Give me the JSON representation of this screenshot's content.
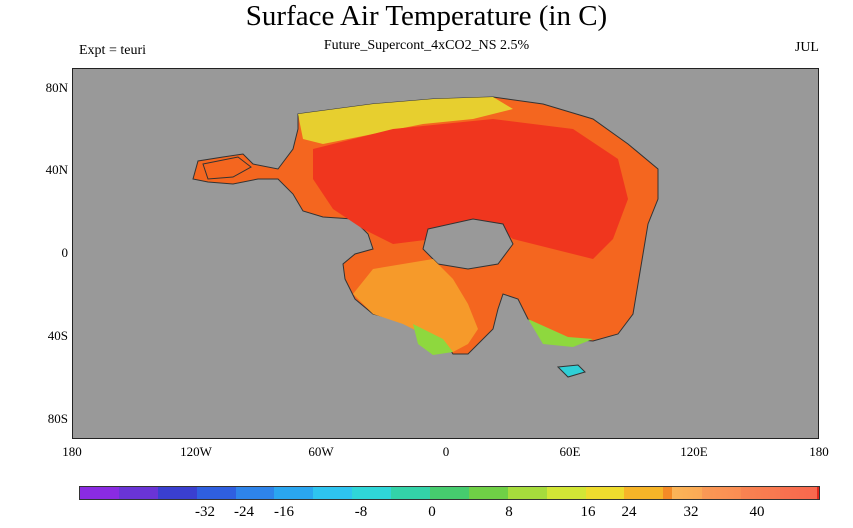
{
  "header": {
    "title": "Surface Air Temperature (in C)",
    "subtitle": "Future_Supercont_4xCO2_NS 2.5%",
    "experiment": "Expt = teuri",
    "month": "JUL"
  },
  "axes": {
    "lat_labels": [
      "80N",
      "40N",
      "0",
      "40S",
      "80S"
    ],
    "lon_labels": [
      "180",
      "120W",
      "60W",
      "0",
      "60E",
      "120E",
      "180"
    ]
  },
  "colorbar": {
    "colors": [
      "#8a2be2",
      "#6a34d6",
      "#3a3fd0",
      "#2f5fe0",
      "#2e84ea",
      "#2aa6f0",
      "#2ec4f0",
      "#2fd6d8",
      "#33d3a8",
      "#46cc6e",
      "#6fd046",
      "#a6dc3c",
      "#d2e636",
      "#eedc2e",
      "#f6b428",
      "#f48a26",
      "#ef5e24",
      "#e8401e",
      "#e1281c"
    ],
    "tick_labels": [
      "-32",
      "-24",
      "-16",
      "-8",
      "0",
      "8",
      "16",
      "24",
      "32",
      "40"
    ]
  },
  "map_colors": {
    "ocean": "#999999",
    "hot": "#f0361e",
    "warm": "#f4661f",
    "mild": "#f69a2a",
    "cool": "#e7cf2f",
    "cold": "#8ed83e",
    "cyan": "#2fcfd6"
  }
}
